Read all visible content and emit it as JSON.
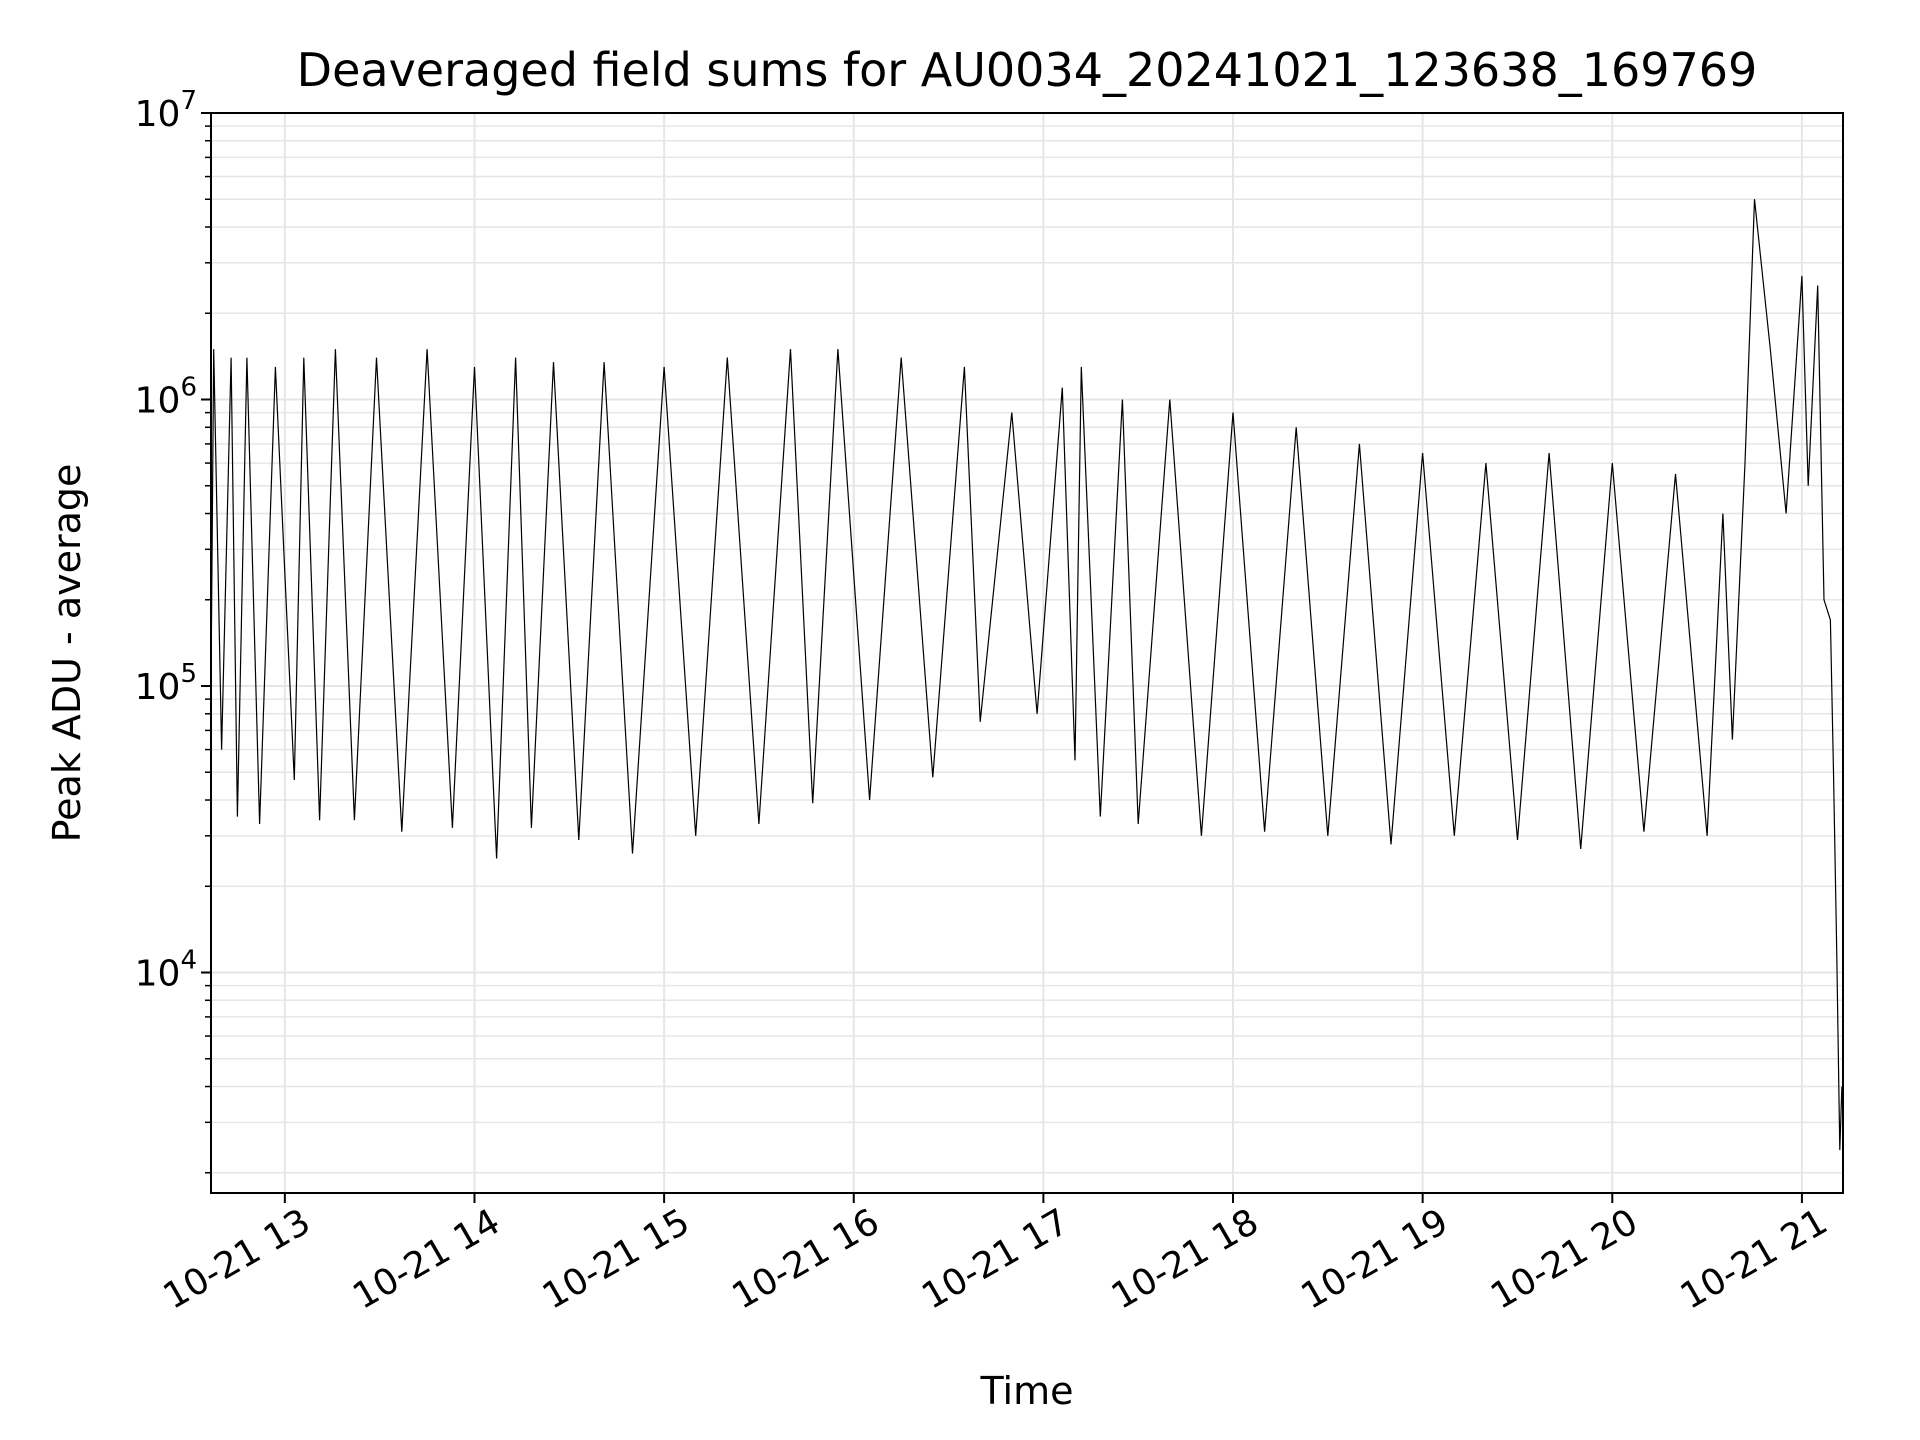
{
  "chart_data": {
    "type": "line",
    "title": "Deaveraged field sums for AU0034_20241021_123638_169769",
    "xlabel": "Time",
    "ylabel": "Peak ADU - average",
    "y_scale": "log",
    "xlim": [
      "2024-10-21 12:36:38",
      "2024-10-21 21:13:00"
    ],
    "ylim": [
      1700,
      10000000
    ],
    "x_ticks": [
      "2024-10-21 13:00",
      "2024-10-21 14:00",
      "2024-10-21 15:00",
      "2024-10-21 16:00",
      "2024-10-21 17:00",
      "2024-10-21 18:00",
      "2024-10-21 19:00",
      "2024-10-21 20:00",
      "2024-10-21 21:00"
    ],
    "x_tick_labels": [
      "10-21 13",
      "10-21 14",
      "10-21 15",
      "10-21 16",
      "10-21 17",
      "10-21 18",
      "10-21 19",
      "10-21 20",
      "10-21 21"
    ],
    "y_ticks": [
      {
        "value": 10000,
        "base": "10",
        "exp": "4"
      },
      {
        "value": 100000,
        "base": "10",
        "exp": "5"
      },
      {
        "value": 1000000,
        "base": "10",
        "exp": "6"
      },
      {
        "value": 10000000,
        "base": "10",
        "exp": "7"
      }
    ],
    "grid": true,
    "line_color": "#000000",
    "grid_color": "#e6e6e6",
    "series": [
      {
        "x": [
          "2024-10-21 12:36:38",
          "2024-10-21 12:37:30",
          "2024-10-21 12:40:00",
          "2024-10-21 12:43:00",
          "2024-10-21 12:45:00",
          "2024-10-21 12:48:00",
          "2024-10-21 12:52:00",
          "2024-10-21 12:57:00",
          "2024-10-21 13:03:00",
          "2024-10-21 13:06:00",
          "2024-10-21 13:11:00",
          "2024-10-21 13:16:00",
          "2024-10-21 13:22:00",
          "2024-10-21 13:29:00",
          "2024-10-21 13:37:00",
          "2024-10-21 13:45:00",
          "2024-10-21 13:53:00",
          "2024-10-21 14:00:00",
          "2024-10-21 14:07:00",
          "2024-10-21 14:13:00",
          "2024-10-21 14:18:00",
          "2024-10-21 14:25:00",
          "2024-10-21 14:33:00",
          "2024-10-21 14:41:00",
          "2024-10-21 14:50:00",
          "2024-10-21 15:00:00",
          "2024-10-21 15:10:00",
          "2024-10-21 15:20:00",
          "2024-10-21 15:30:00",
          "2024-10-21 15:40:00",
          "2024-10-21 15:47:00",
          "2024-10-21 15:55:00",
          "2024-10-21 16:05:00",
          "2024-10-21 16:15:00",
          "2024-10-21 16:25:00",
          "2024-10-21 16:35:00",
          "2024-10-21 16:40:00",
          "2024-10-21 16:50:00",
          "2024-10-21 16:58:00",
          "2024-10-21 17:06:00",
          "2024-10-21 17:10:00",
          "2024-10-21 17:12:00",
          "2024-10-21 17:18:00",
          "2024-10-21 17:25:00",
          "2024-10-21 17:30:00",
          "2024-10-21 17:40:00",
          "2024-10-21 17:50:00",
          "2024-10-21 18:00:00",
          "2024-10-21 18:10:00",
          "2024-10-21 18:20:00",
          "2024-10-21 18:30:00",
          "2024-10-21 18:40:00",
          "2024-10-21 18:50:00",
          "2024-10-21 19:00:00",
          "2024-10-21 19:10:00",
          "2024-10-21 19:20:00",
          "2024-10-21 19:30:00",
          "2024-10-21 19:40:00",
          "2024-10-21 19:50:00",
          "2024-10-21 20:00:00",
          "2024-10-21 20:10:00",
          "2024-10-21 20:20:00",
          "2024-10-21 20:30:00",
          "2024-10-21 20:35:00",
          "2024-10-21 20:38:00",
          "2024-10-21 20:42:00",
          "2024-10-21 20:45:00",
          "2024-10-21 20:50:00",
          "2024-10-21 20:55:00",
          "2024-10-21 21:00:00",
          "2024-10-21 21:02:00",
          "2024-10-21 21:05:00",
          "2024-10-21 21:07:00",
          "2024-10-21 21:09:00",
          "2024-10-21 21:10:00",
          "2024-10-21 21:11:00",
          "2024-10-21 21:12:00",
          "2024-10-21 21:12:40"
        ],
        "y": [
          100000,
          1500000,
          60000,
          1400000,
          35000,
          1400000,
          33000,
          1300000,
          47000,
          1400000,
          34000,
          1500000,
          34000,
          1400000,
          31000,
          1500000,
          32000,
          1300000,
          25000,
          1400000,
          32000,
          1350000,
          29000,
          1350000,
          26000,
          1300000,
          30000,
          1400000,
          33000,
          1500000,
          39000,
          1500000,
          40000,
          1400000,
          48000,
          1300000,
          75000,
          900000,
          80000,
          1100000,
          55000,
          1300000,
          35000,
          1000000,
          33000,
          1000000,
          30000,
          900000,
          31000,
          800000,
          30000,
          700000,
          28000,
          650000,
          30000,
          600000,
          29000,
          650000,
          27000,
          600000,
          31000,
          550000,
          30000,
          400000,
          65000,
          600000,
          5000000,
          1500000,
          400000,
          2700000,
          500000,
          2500000,
          200000,
          170000,
          50000,
          12000,
          2400,
          4000
        ]
      }
    ]
  }
}
